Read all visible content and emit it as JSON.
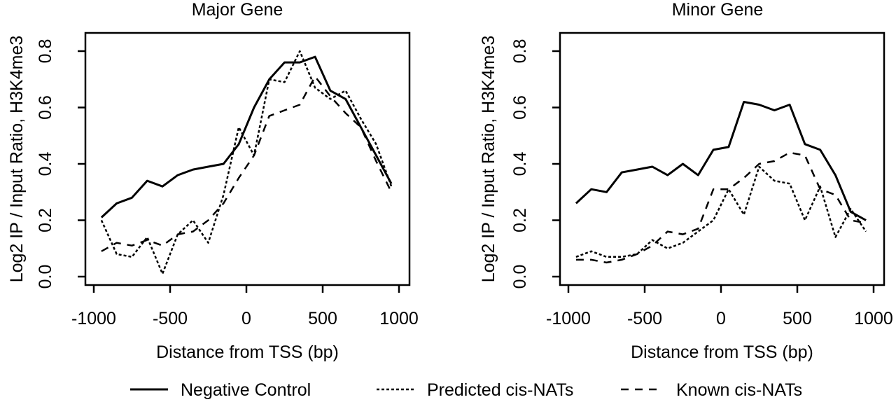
{
  "chart_data": [
    {
      "type": "line",
      "title": "Major Gene",
      "xlabel": "Distance from TSS (bp)",
      "ylabel": "Log2 IP / Input Ratio, H3K4me3",
      "xlim": [
        -1000,
        1000
      ],
      "ylim": [
        0,
        0.8
      ],
      "xticks": [
        "-1000",
        "-500",
        "0",
        "500",
        "1000"
      ],
      "yticks": [
        "0.0",
        "0.2",
        "0.4",
        "0.6",
        "0.8"
      ],
      "x": [
        -950,
        -850,
        -750,
        -650,
        -550,
        -450,
        -350,
        -250,
        -150,
        -50,
        50,
        150,
        250,
        350,
        450,
        550,
        650,
        750,
        850,
        950
      ],
      "series": [
        {
          "name": "Negative Control",
          "style": "solid",
          "values": [
            0.21,
            0.26,
            0.28,
            0.34,
            0.32,
            0.36,
            0.38,
            0.39,
            0.4,
            0.47,
            0.6,
            0.7,
            0.76,
            0.76,
            0.78,
            0.66,
            0.63,
            0.53,
            0.43,
            0.33
          ]
        },
        {
          "name": "Predicted cis-NATs",
          "style": "dotted",
          "values": [
            0.2,
            0.08,
            0.07,
            0.14,
            0.01,
            0.15,
            0.2,
            0.12,
            0.29,
            0.53,
            0.43,
            0.7,
            0.69,
            0.8,
            0.67,
            0.63,
            0.66,
            0.56,
            0.47,
            0.32
          ]
        },
        {
          "name": "Known cis-NATs",
          "style": "dashed",
          "values": [
            0.09,
            0.12,
            0.11,
            0.13,
            0.11,
            0.15,
            0.16,
            0.2,
            0.26,
            0.35,
            0.43,
            0.57,
            0.59,
            0.61,
            0.71,
            0.64,
            0.58,
            0.53,
            0.41,
            0.3
          ]
        }
      ]
    },
    {
      "type": "line",
      "title": "Minor Gene",
      "xlabel": "Distance from TSS (bp)",
      "ylabel": "Log2 IP / Input Ratio, H3K4me3",
      "xlim": [
        -1000,
        1000
      ],
      "ylim": [
        0,
        0.8
      ],
      "xticks": [
        "-1000",
        "-500",
        "0",
        "500",
        "1000"
      ],
      "yticks": [
        "0.0",
        "0.2",
        "0.4",
        "0.6",
        "0.8"
      ],
      "x": [
        -950,
        -850,
        -750,
        -650,
        -550,
        -450,
        -350,
        -250,
        -150,
        -50,
        50,
        150,
        250,
        350,
        450,
        550,
        650,
        750,
        850,
        950
      ],
      "series": [
        {
          "name": "Negative Control",
          "style": "solid",
          "values": [
            0.26,
            0.31,
            0.3,
            0.37,
            0.38,
            0.39,
            0.36,
            0.4,
            0.36,
            0.45,
            0.46,
            0.62,
            0.61,
            0.59,
            0.61,
            0.47,
            0.45,
            0.36,
            0.23,
            0.2
          ]
        },
        {
          "name": "Predicted cis-NATs",
          "style": "dotted",
          "values": [
            0.07,
            0.09,
            0.07,
            0.07,
            0.08,
            0.13,
            0.1,
            0.12,
            0.16,
            0.2,
            0.31,
            0.22,
            0.39,
            0.34,
            0.33,
            0.2,
            0.32,
            0.14,
            0.24,
            0.16
          ]
        },
        {
          "name": "Known cis-NATs",
          "style": "dashed",
          "values": [
            0.06,
            0.06,
            0.05,
            0.06,
            0.08,
            0.11,
            0.16,
            0.15,
            0.17,
            0.31,
            0.31,
            0.35,
            0.4,
            0.41,
            0.44,
            0.43,
            0.31,
            0.29,
            0.2,
            0.19
          ]
        }
      ]
    }
  ],
  "legend": {
    "placement": "bottom",
    "items": [
      {
        "label": "Negative Control",
        "style": "solid"
      },
      {
        "label": "Predicted cis-NATs",
        "style": "dotted"
      },
      {
        "label": "Known cis-NATs",
        "style": "dashed"
      }
    ]
  }
}
